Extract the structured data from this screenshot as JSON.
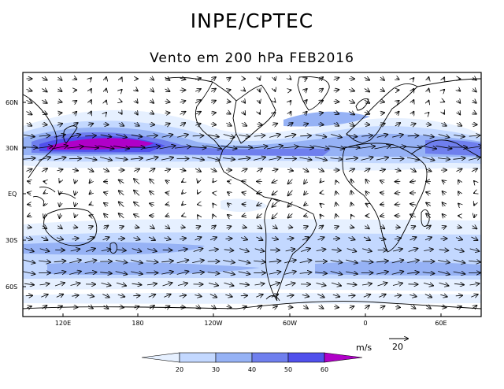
{
  "title": "INPE/CPTEC",
  "subtitle": "Vento em 200 hPa FEB2016",
  "lat_labels": [
    "60N",
    "30N",
    "EQ",
    "30S",
    "60S"
  ],
  "lon_labels": [
    "120E",
    "180",
    "120W",
    "60W",
    "0",
    "60E"
  ],
  "colorbar": {
    "ticks": [
      "20",
      "30",
      "40",
      "50",
      "60"
    ],
    "colors": [
      "#e6f0ff",
      "#c3d8ff",
      "#96b2f5",
      "#6f7fee",
      "#5050ec",
      "#b000c8"
    ]
  },
  "vector_legend": {
    "unit": "m/s",
    "value": "20"
  },
  "colors": {
    "land": "#000000",
    "arrow": "#000000"
  }
}
